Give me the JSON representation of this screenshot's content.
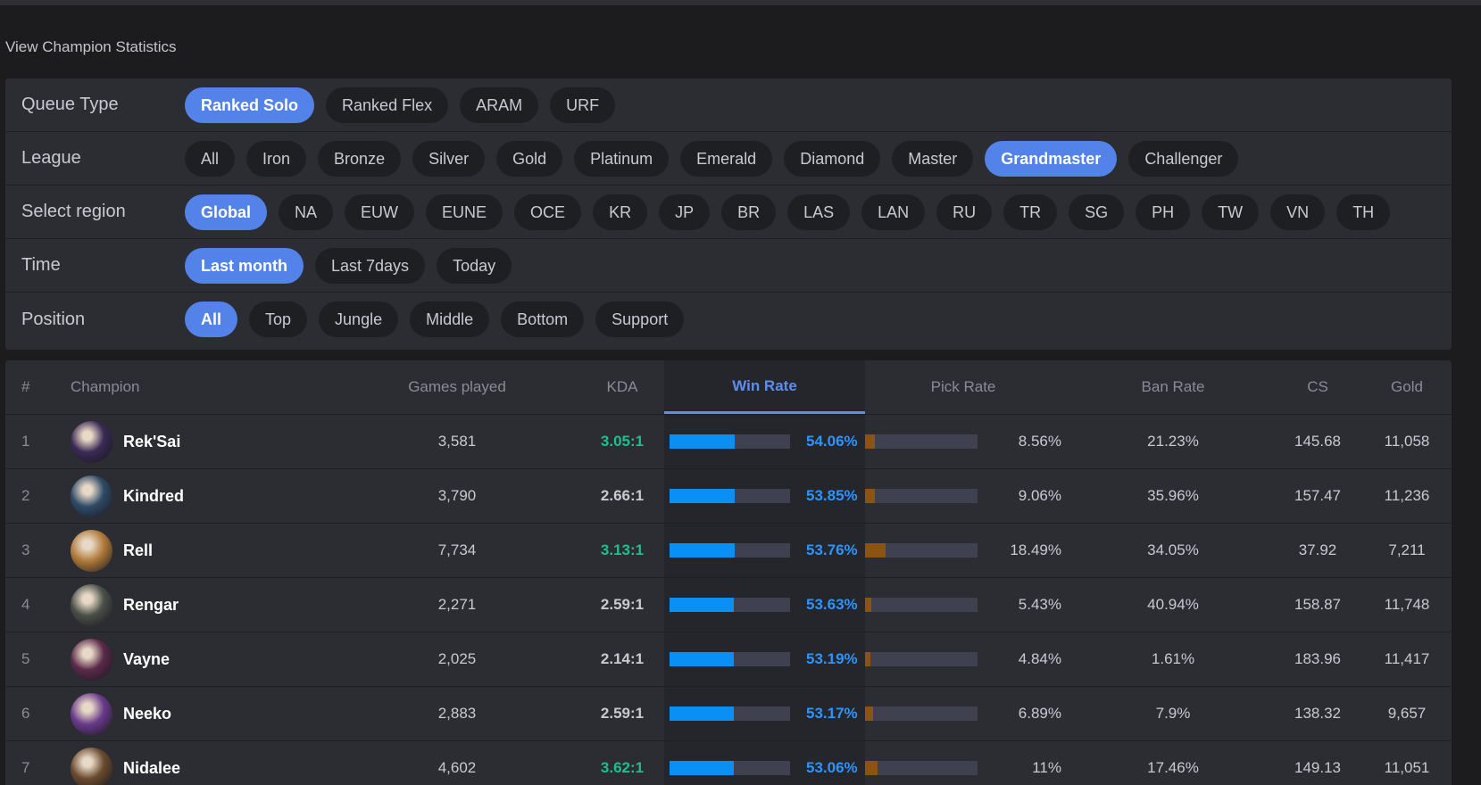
{
  "heading": "View Champion Statistics",
  "filters": {
    "queue": {
      "label": "Queue Type",
      "options": [
        "Ranked Solo",
        "Ranked Flex",
        "ARAM",
        "URF"
      ],
      "selected": "Ranked Solo"
    },
    "league": {
      "label": "League",
      "options": [
        "All",
        "Iron",
        "Bronze",
        "Silver",
        "Gold",
        "Platinum",
        "Emerald",
        "Diamond",
        "Master",
        "Grandmaster",
        "Challenger"
      ],
      "selected": "Grandmaster"
    },
    "region": {
      "label": "Select region",
      "options": [
        "Global",
        "NA",
        "EUW",
        "EUNE",
        "OCE",
        "KR",
        "JP",
        "BR",
        "LAS",
        "LAN",
        "RU",
        "TR",
        "SG",
        "PH",
        "TW",
        "VN",
        "TH"
      ],
      "selected": "Global"
    },
    "time": {
      "label": "Time",
      "options": [
        "Last month",
        "Last 7days",
        "Today"
      ],
      "selected": "Last month"
    },
    "position": {
      "label": "Position",
      "options": [
        "All",
        "Top",
        "Jungle",
        "Middle",
        "Bottom",
        "Support"
      ],
      "selected": "All"
    }
  },
  "table": {
    "headers": {
      "rank": "#",
      "champion": "Champion",
      "games": "Games played",
      "kda": "KDA",
      "win_rate": "Win Rate",
      "pick_rate": "Pick Rate",
      "ban_rate": "Ban Rate",
      "cs": "CS",
      "gold": "Gold"
    },
    "rows": [
      {
        "rank": "1",
        "champion": "Rek'Sai",
        "avatar_color": "#3a2a55",
        "games": "3,581",
        "kda": "3.05:1",
        "kda_good": true,
        "win_rate": "54.06%",
        "win_fill": 0.54,
        "pick_rate": "8.56%",
        "pick_fill": 0.0856,
        "ban_rate": "21.23%",
        "cs": "145.68",
        "gold": "11,058"
      },
      {
        "rank": "2",
        "champion": "Kindred",
        "avatar_color": "#2f4a66",
        "games": "3,790",
        "kda": "2.66:1",
        "kda_good": false,
        "win_rate": "53.85%",
        "win_fill": 0.5385,
        "pick_rate": "9.06%",
        "pick_fill": 0.0906,
        "ban_rate": "35.96%",
        "cs": "157.47",
        "gold": "11,236"
      },
      {
        "rank": "3",
        "champion": "Rell",
        "avatar_color": "#b07a3a",
        "games": "7,734",
        "kda": "3.13:1",
        "kda_good": true,
        "win_rate": "53.76%",
        "win_fill": 0.5376,
        "pick_rate": "18.49%",
        "pick_fill": 0.1849,
        "ban_rate": "34.05%",
        "cs": "37.92",
        "gold": "7,211"
      },
      {
        "rank": "4",
        "champion": "Rengar",
        "avatar_color": "#4a4f48",
        "games": "2,271",
        "kda": "2.59:1",
        "kda_good": false,
        "win_rate": "53.63%",
        "win_fill": 0.5363,
        "pick_rate": "5.43%",
        "pick_fill": 0.0543,
        "ban_rate": "40.94%",
        "cs": "158.87",
        "gold": "11,748"
      },
      {
        "rank": "5",
        "champion": "Vayne",
        "avatar_color": "#5a2a4a",
        "games": "2,025",
        "kda": "2.14:1",
        "kda_good": false,
        "win_rate": "53.19%",
        "win_fill": 0.5319,
        "pick_rate": "4.84%",
        "pick_fill": 0.0484,
        "ban_rate": "1.61%",
        "cs": "183.96",
        "gold": "11,417"
      },
      {
        "rank": "6",
        "champion": "Neeko",
        "avatar_color": "#6a3a8a",
        "games": "2,883",
        "kda": "2.59:1",
        "kda_good": false,
        "win_rate": "53.17%",
        "win_fill": 0.5317,
        "pick_rate": "6.89%",
        "pick_fill": 0.0689,
        "ban_rate": "7.9%",
        "cs": "138.32",
        "gold": "9,657"
      },
      {
        "rank": "7",
        "champion": "Nidalee",
        "avatar_color": "#6a4a2e",
        "games": "4,602",
        "kda": "3.62:1",
        "kda_good": true,
        "win_rate": "53.06%",
        "win_fill": 0.5306,
        "pick_rate": "11%",
        "pick_fill": 0.11,
        "ban_rate": "17.46%",
        "cs": "149.13",
        "gold": "11,051"
      }
    ]
  }
}
